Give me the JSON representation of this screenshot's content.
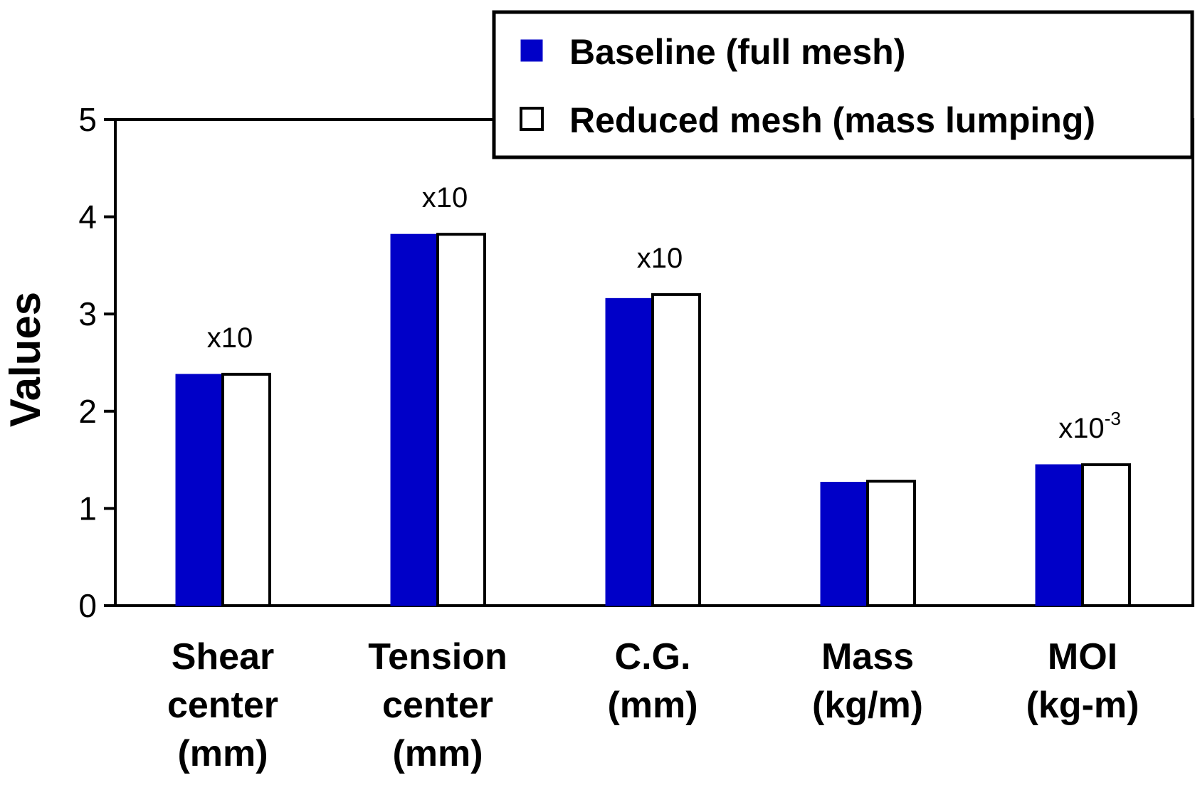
{
  "chart_data": {
    "type": "bar",
    "title": "",
    "xlabel": "",
    "ylabel": "Values",
    "ylim": [
      0,
      5
    ],
    "yticks": [
      "0",
      "1",
      "2",
      "3",
      "4",
      "5"
    ],
    "categories": [
      [
        "Shear",
        "center",
        "(mm)"
      ],
      [
        "Tension",
        "center",
        "(mm)"
      ],
      [
        "C.G.",
        "(mm)"
      ],
      [
        "Mass",
        "(kg/m)"
      ],
      [
        "MOI",
        "(kg-m)"
      ]
    ],
    "series": [
      {
        "name": "Baseline (full mesh)",
        "color": "#0000c8",
        "values": [
          2.38,
          3.82,
          3.16,
          1.27,
          1.45
        ]
      },
      {
        "name": "Reduced mesh (mass lumping)",
        "color": "#ffffff",
        "values": [
          2.38,
          3.82,
          3.2,
          1.28,
          1.45
        ]
      }
    ],
    "annotations": [
      {
        "category": 0,
        "text": "x10",
        "sup": ""
      },
      {
        "category": 1,
        "text": "x10",
        "sup": ""
      },
      {
        "category": 2,
        "text": "x10",
        "sup": ""
      },
      {
        "category": 4,
        "text": "x10",
        "sup": "-3"
      }
    ],
    "legend": {
      "position": "top-right"
    }
  }
}
